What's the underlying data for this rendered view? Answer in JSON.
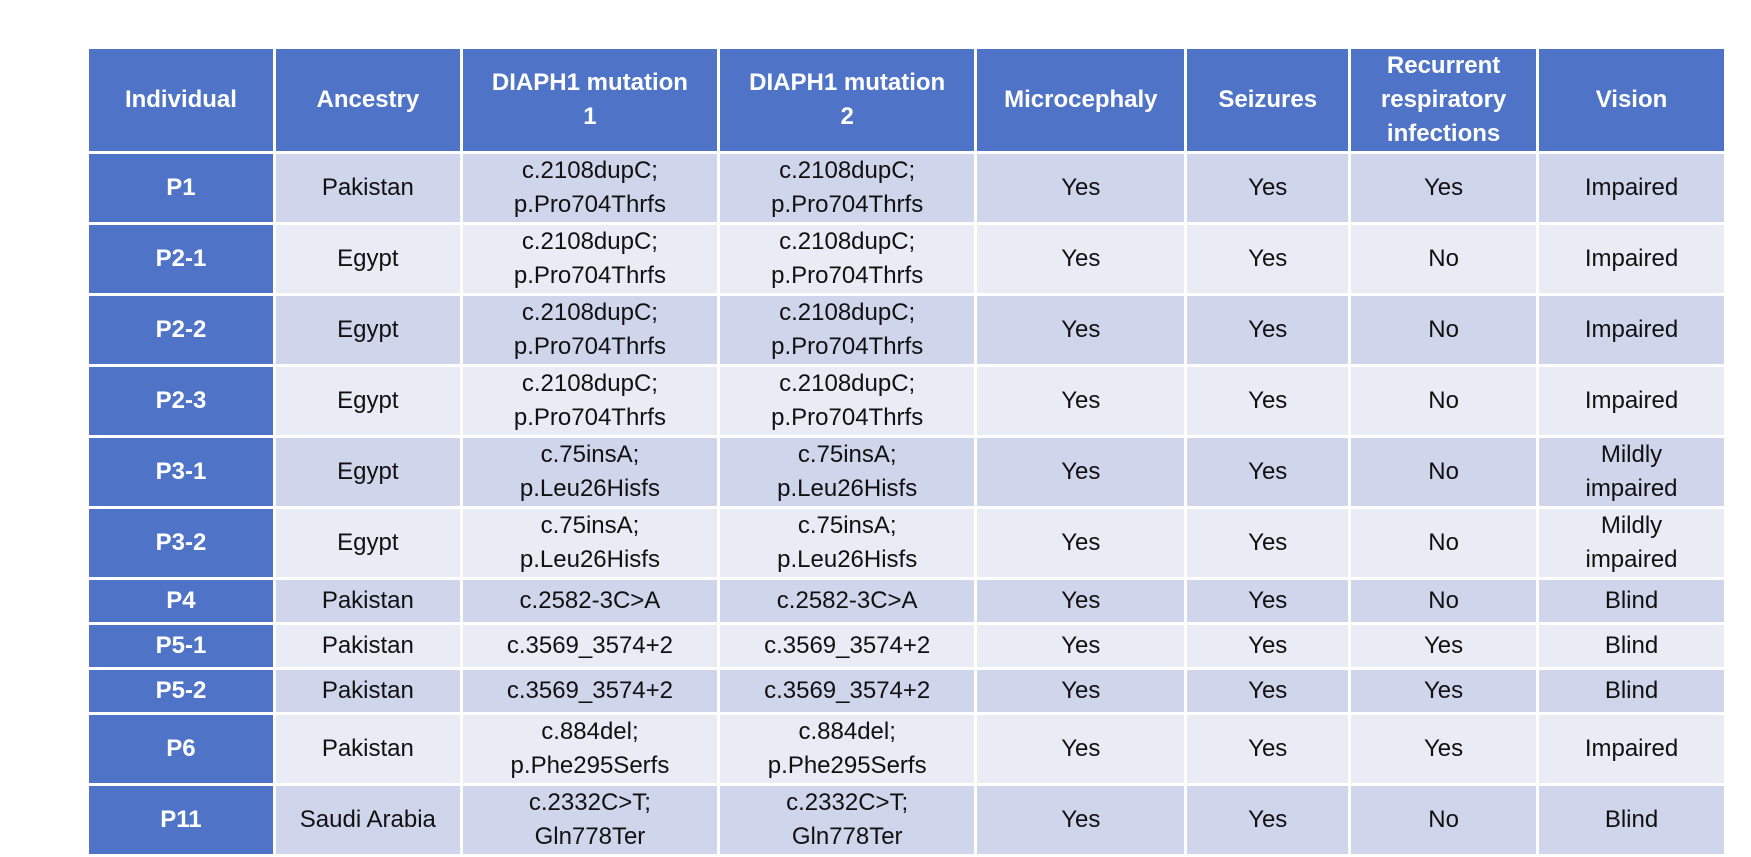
{
  "table": {
    "headers": [
      "Individual",
      "Ancestry",
      "DIAPH1 mutation\n1",
      "DIAPH1 mutation\n2",
      "Microcephaly",
      "Seizures",
      "Recurrent\nrespiratory\ninfections",
      "Vision"
    ],
    "rows": [
      {
        "id": "P1",
        "ancestry": "Pakistan",
        "mut1": "c.2108dupC;\np.Pro704Thrfs",
        "mut2": "c.2108dupC;\np.Pro704Thrfs",
        "microcephaly": "Yes",
        "seizures": "Yes",
        "resp": "Yes",
        "vision": "Impaired"
      },
      {
        "id": "P2-1",
        "ancestry": "Egypt",
        "mut1": "c.2108dupC;\np.Pro704Thrfs",
        "mut2": "c.2108dupC;\np.Pro704Thrfs",
        "microcephaly": "Yes",
        "seizures": "Yes",
        "resp": "No",
        "vision": "Impaired"
      },
      {
        "id": "P2-2",
        "ancestry": "Egypt",
        "mut1": "c.2108dupC;\np.Pro704Thrfs",
        "mut2": "c.2108dupC;\np.Pro704Thrfs",
        "microcephaly": "Yes",
        "seizures": "Yes",
        "resp": "No",
        "vision": "Impaired"
      },
      {
        "id": "P2-3",
        "ancestry": "Egypt",
        "mut1": "c.2108dupC;\np.Pro704Thrfs",
        "mut2": "c.2108dupC;\np.Pro704Thrfs",
        "microcephaly": "Yes",
        "seizures": "Yes",
        "resp": "No",
        "vision": "Impaired"
      },
      {
        "id": "P3-1",
        "ancestry": "Egypt",
        "mut1": "c.75insA;\np.Leu26Hisfs",
        "mut2": "c.75insA;\np.Leu26Hisfs",
        "microcephaly": "Yes",
        "seizures": "Yes",
        "resp": "No",
        "vision": "Mildly\nimpaired"
      },
      {
        "id": "P3-2",
        "ancestry": "Egypt",
        "mut1": "c.75insA;\np.Leu26Hisfs",
        "mut2": "c.75insA;\np.Leu26Hisfs",
        "microcephaly": "Yes",
        "seizures": "Yes",
        "resp": "No",
        "vision": "Mildly\nimpaired"
      },
      {
        "id": "P4",
        "ancestry": "Pakistan",
        "mut1": "c.2582-3C>A",
        "mut2": "c.2582-3C>A",
        "microcephaly": "Yes",
        "seizures": "Yes",
        "resp": "No",
        "vision": "Blind"
      },
      {
        "id": "P5-1",
        "ancestry": "Pakistan",
        "mut1": "c.3569_3574+2",
        "mut2": "c.3569_3574+2",
        "microcephaly": "Yes",
        "seizures": "Yes",
        "resp": "Yes",
        "vision": "Blind"
      },
      {
        "id": "P5-2",
        "ancestry": "Pakistan",
        "mut1": "c.3569_3574+2",
        "mut2": "c.3569_3574+2",
        "microcephaly": "Yes",
        "seizures": "Yes",
        "resp": "Yes",
        "vision": "Blind"
      },
      {
        "id": "P6",
        "ancestry": "Pakistan",
        "mut1": "c.884del;\np.Phe295Serfs",
        "mut2": "c.884del;\np.Phe295Serfs",
        "microcephaly": "Yes",
        "seizures": "Yes",
        "resp": "Yes",
        "vision": "Impaired"
      },
      {
        "id": "P11",
        "ancestry": "Saudi Arabia",
        "mut1": "c.2332C>T;\nGln778Ter",
        "mut2": "c.2332C>T;\nGln778Ter",
        "microcephaly": "Yes",
        "seizures": "Yes",
        "resp": "No",
        "vision": "Blind"
      }
    ]
  }
}
